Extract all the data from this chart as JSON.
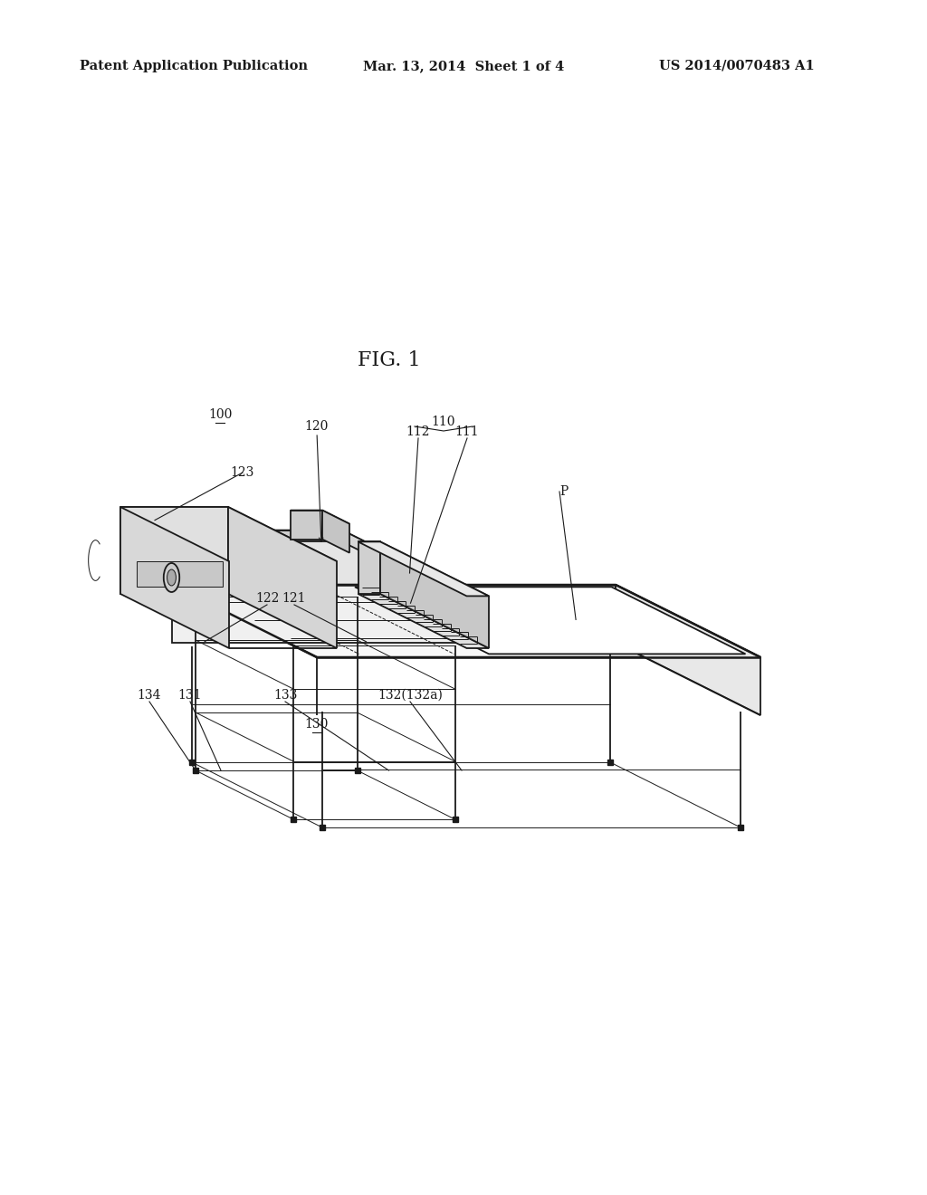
{
  "bg_color": "#ffffff",
  "line_color": "#1a1a1a",
  "text_color": "#1a1a1a",
  "header_left": "Patent Application Publication",
  "header_mid": "Mar. 13, 2014  Sheet 1 of 4",
  "header_right": "US 2014/0070483 A1",
  "fig_label": "FIG. 1",
  "lw_main": 1.3,
  "lw_thin": 0.7,
  "lw_thick": 1.8,
  "fs_header": 10.5,
  "fs_fig": 16,
  "fs_label": 10
}
